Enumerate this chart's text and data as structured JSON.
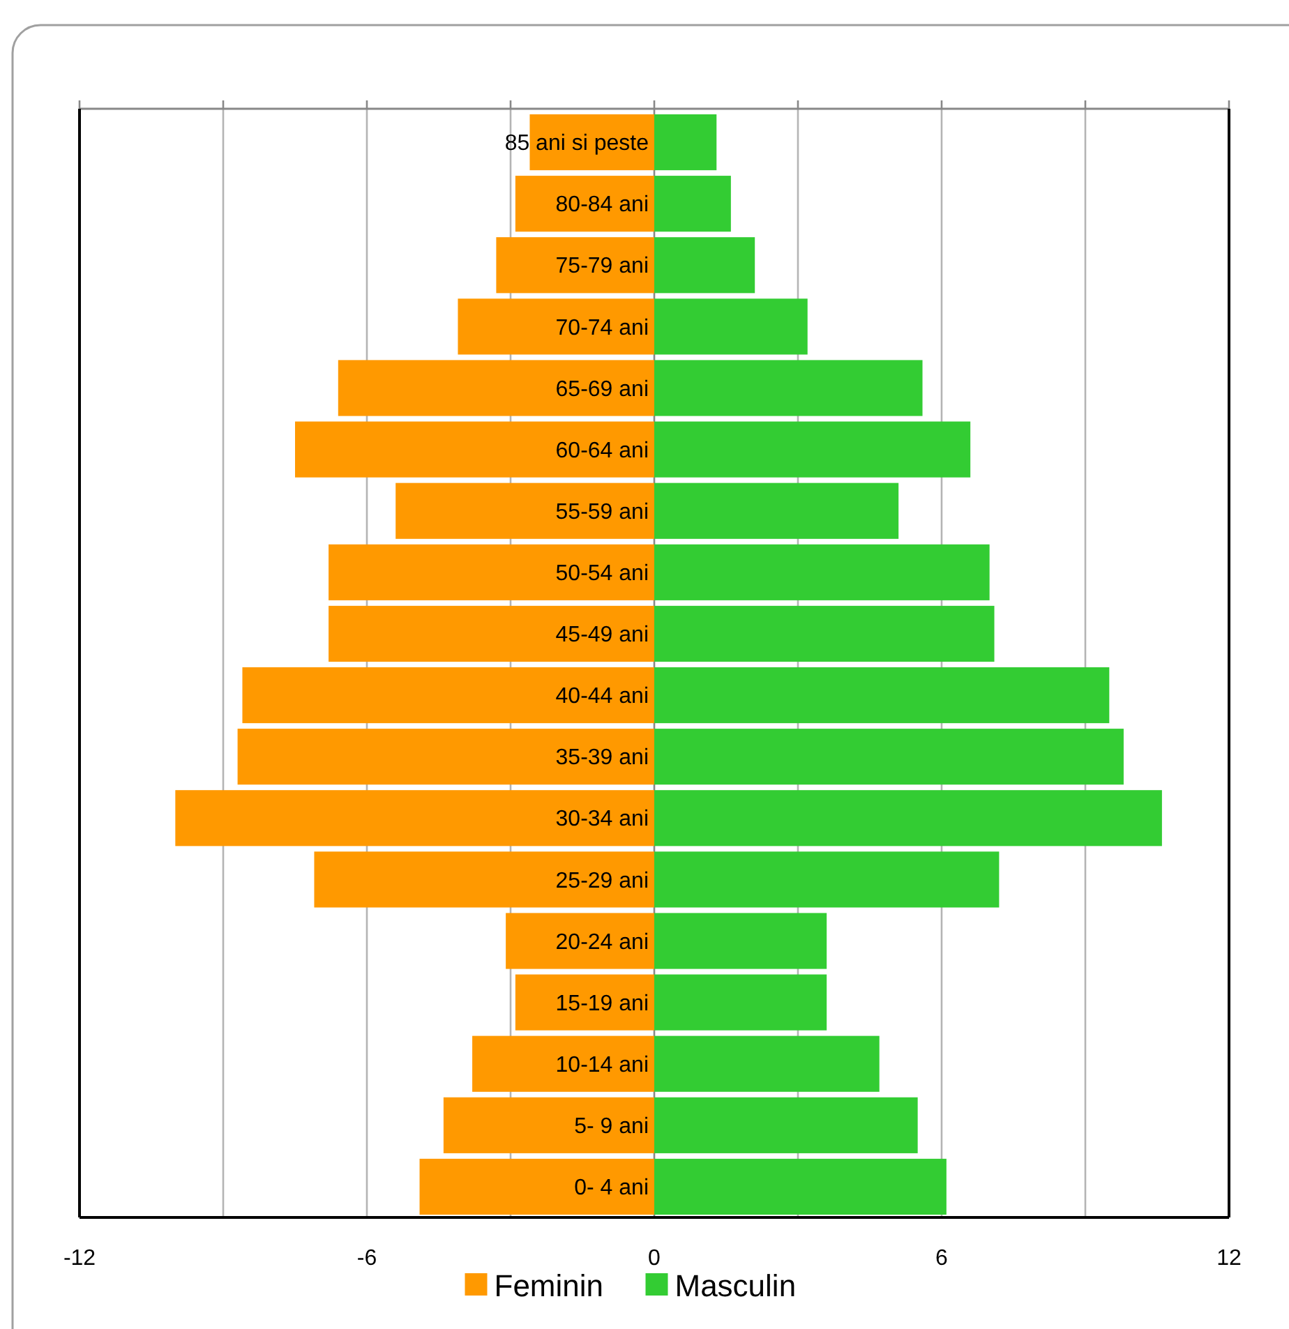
{
  "chart_data": {
    "type": "bar",
    "orientation": "horizontal",
    "categories": [
      "85 ani si peste",
      "80-84 ani",
      "75-79 ani",
      "70-74 ani",
      "65-69 ani",
      "60-64 ani",
      "55-59 ani",
      "50-54 ani",
      "45-49 ani",
      "40-44 ani",
      "35-39 ani",
      "30-34 ani",
      "25-29 ani",
      "20-24 ani",
      "15-19 ani",
      "10-14 ani",
      "5- 9 ani",
      "0- 4 ani"
    ],
    "series": [
      {
        "name": "Feminin",
        "color": "#ff9900",
        "values": [
          -2.6,
          -2.9,
          -3.3,
          -4.1,
          -6.6,
          -7.5,
          -5.4,
          -6.8,
          -6.8,
          -8.6,
          -8.7,
          -10,
          -7.1,
          -3.1,
          -2.9,
          -3.8,
          -4.4,
          -4.9
        ]
      },
      {
        "name": "Masculin",
        "color": "#33cc33",
        "values": [
          1.3,
          1.6,
          2.1,
          3.2,
          5.6,
          6.6,
          5.1,
          7,
          7.1,
          9.5,
          9.8,
          10.6,
          7.2,
          3.6,
          3.6,
          4.7,
          5.5,
          6.1
        ]
      }
    ],
    "xlim": [
      -12,
      12
    ],
    "xticks": [
      -12,
      {
        "value": -9,
        "label": null
      },
      -6,
      {
        "value": -3,
        "label": null
      },
      0,
      {
        "value": 3,
        "label": null
      },
      6,
      {
        "value": 9,
        "label": null
      },
      12
    ],
    "grid": "x",
    "legend": "bottom",
    "stacked": true
  }
}
